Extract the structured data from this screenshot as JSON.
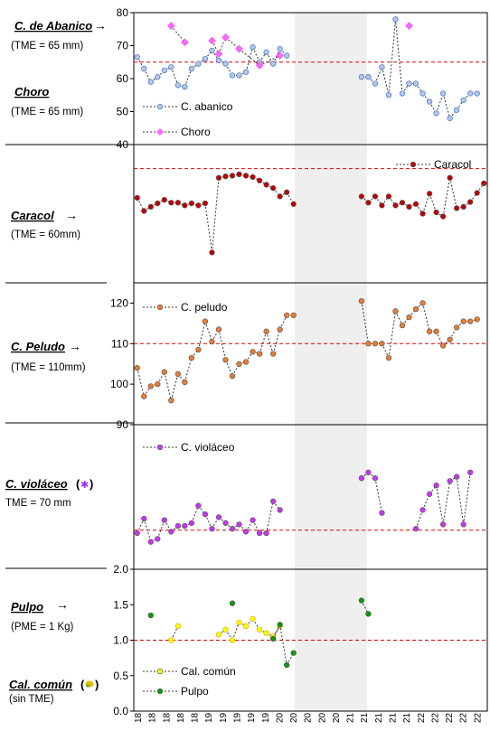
{
  "chart_data": [
    {
      "type": "scatter",
      "panel_labels": {
        "title": "C. de Abanico",
        "arrow": "→",
        "subtitle": "(TME = 65 mm)"
      },
      "ylim": [
        40,
        80
      ],
      "yticks": [
        "40",
        "50",
        "60",
        "70",
        "80"
      ],
      "reference_line": 65,
      "legend": "bottom-left",
      "series": [
        {
          "name": "C. abanico",
          "color": "#4472c4",
          "marker": "circle",
          "values": [
            [
              1,
              66.5
            ],
            [
              2,
              63
            ],
            [
              3,
              59
            ],
            [
              4,
              60.5
            ],
            [
              5,
              62.5
            ],
            [
              6,
              63.5
            ],
            [
              7,
              58
            ],
            [
              8,
              57.5
            ],
            [
              9,
              63
            ],
            [
              10,
              64.5
            ],
            [
              11,
              66
            ],
            [
              12,
              68.5
            ],
            [
              13,
              65.5
            ],
            [
              14,
              64.5
            ],
            [
              15,
              61
            ],
            [
              16,
              61
            ],
            [
              17,
              62
            ],
            [
              18,
              69.5
            ],
            [
              19,
              65
            ],
            [
              20,
              68
            ],
            [
              21,
              64.5
            ],
            [
              22,
              69
            ],
            [
              23,
              67
            ],
            [
              34,
              60.5
            ],
            [
              35,
              60.5
            ],
            [
              36,
              58.5
            ],
            [
              37,
              63.5
            ],
            [
              38,
              55
            ],
            [
              39,
              78
            ],
            [
              40,
              55.5
            ],
            [
              41,
              58.5
            ],
            [
              42,
              58.5
            ],
            [
              43,
              55.5
            ],
            [
              44,
              53
            ],
            [
              45,
              49.5
            ],
            [
              46,
              55.5
            ],
            [
              47,
              48
            ],
            [
              48,
              50.5
            ],
            [
              49,
              53.5
            ],
            [
              50,
              55.5
            ],
            [
              51,
              55.5
            ]
          ]
        },
        {
          "name": "Choro",
          "color": "#ff66ff",
          "marker": "diamond",
          "values": [
            [
              6,
              76
            ],
            [
              8,
              71
            ],
            [
              12,
              71.5
            ],
            [
              14,
              72.5
            ],
            [
              16,
              69
            ],
            [
              19,
              64
            ],
            [
              22,
              67
            ],
            [
              13,
              67.5
            ],
            [
              41,
              76
            ]
          ]
        }
      ]
    },
    {
      "type": "scatter",
      "panel_labels": {
        "title": "Caracol",
        "arrow": "→",
        "subtitle": "(TME = 60mm)"
      },
      "ylim": [
        0,
        1
      ],
      "reference_line": 0.826,
      "legend": "top-right",
      "series": [
        {
          "name": "Caracol",
          "color": "#c00000",
          "marker": "circle",
          "values": [
            [
              1,
              0.615
            ],
            [
              2,
              0.52
            ],
            [
              3,
              0.55
            ],
            [
              4,
              0.575
            ],
            [
              5,
              0.6
            ],
            [
              6,
              0.58
            ],
            [
              7,
              0.58
            ],
            [
              8,
              0.56
            ],
            [
              9,
              0.575
            ],
            [
              10,
              0.56
            ],
            [
              11,
              0.575
            ],
            [
              12,
              0.22
            ],
            [
              13,
              0.76
            ],
            [
              14,
              0.77
            ],
            [
              15,
              0.775
            ],
            [
              16,
              0.785
            ],
            [
              17,
              0.775
            ],
            [
              18,
              0.765
            ],
            [
              19,
              0.74
            ],
            [
              20,
              0.71
            ],
            [
              21,
              0.685
            ],
            [
              22,
              0.625
            ],
            [
              23,
              0.655
            ],
            [
              24,
              0.57
            ],
            [
              34,
              0.625
            ],
            [
              35,
              0.58
            ],
            [
              36,
              0.625
            ],
            [
              37,
              0.56
            ],
            [
              38,
              0.625
            ],
            [
              39,
              0.56
            ],
            [
              40,
              0.58
            ],
            [
              41,
              0.55
            ],
            [
              42,
              0.57
            ],
            [
              43,
              0.5
            ],
            [
              44,
              0.645
            ],
            [
              45,
              0.51
            ],
            [
              46,
              0.48
            ],
            [
              47,
              0.76
            ],
            [
              48,
              0.54
            ],
            [
              49,
              0.55
            ],
            [
              50,
              0.585
            ],
            [
              51,
              0.65
            ],
            [
              52,
              0.72
            ]
          ]
        }
      ]
    },
    {
      "type": "scatter",
      "panel_labels": {
        "title": "C. Peludo",
        "arrow": "→",
        "subtitle": "(TME = 110mm)"
      },
      "ylim": [
        90,
        125
      ],
      "yticks": [
        "90",
        "100",
        "110",
        "120"
      ],
      "reference_line": 110,
      "legend": "top-left",
      "series": [
        {
          "name": "C. peludo",
          "color": "#ed7d31",
          "marker": "circle",
          "values": [
            [
              1,
              104
            ],
            [
              2,
              97
            ],
            [
              3,
              99.5
            ],
            [
              4,
              100
            ],
            [
              5,
              103
            ],
            [
              6,
              96
            ],
            [
              7,
              102.5
            ],
            [
              8,
              100.5
            ],
            [
              9,
              106.5
            ],
            [
              10,
              108.5
            ],
            [
              11,
              115.5
            ],
            [
              12,
              110.5
            ],
            [
              13,
              113.5
            ],
            [
              14,
              106
            ],
            [
              15,
              102
            ],
            [
              16,
              105
            ],
            [
              17,
              105.5
            ],
            [
              18,
              108
            ],
            [
              19,
              107.5
            ],
            [
              20,
              113
            ],
            [
              21,
              107.5
            ],
            [
              22,
              113.5
            ],
            [
              23,
              117
            ],
            [
              24,
              117
            ],
            [
              34,
              120.5
            ],
            [
              35,
              110
            ],
            [
              36,
              110
            ],
            [
              37,
              110
            ],
            [
              38,
              106.5
            ],
            [
              39,
              118
            ],
            [
              40,
              114.5
            ],
            [
              41,
              116.5
            ],
            [
              42,
              118.5
            ],
            [
              43,
              120
            ],
            [
              44,
              113
            ],
            [
              45,
              113
            ],
            [
              46,
              109.5
            ],
            [
              47,
              111
            ],
            [
              48,
              114
            ],
            [
              49,
              115.5
            ],
            [
              50,
              115.5
            ],
            [
              51,
              116
            ]
          ]
        }
      ]
    },
    {
      "type": "scatter",
      "panel_labels": {
        "title": "C. violáceo",
        "paren_open": "(",
        "glyph": "✱",
        "paren_close": ")",
        "subtitle": "TME = 70 mm"
      },
      "ylim": [
        0,
        1
      ],
      "reference_line": 0.27,
      "legend": "top-left",
      "series": [
        {
          "name": "C. violáceo",
          "color": "#cc33ff",
          "marker": "circle",
          "values": [
            [
              1,
              0.25
            ],
            [
              2,
              0.35
            ],
            [
              3,
              0.19
            ],
            [
              4,
              0.21
            ],
            [
              5,
              0.34
            ],
            [
              6,
              0.26
            ],
            [
              7,
              0.3
            ],
            [
              8,
              0.3
            ],
            [
              9,
              0.32
            ],
            [
              10,
              0.44
            ],
            [
              11,
              0.38
            ],
            [
              12,
              0.28
            ],
            [
              13,
              0.36
            ],
            [
              14,
              0.32
            ],
            [
              15,
              0.28
            ],
            [
              16,
              0.31
            ],
            [
              17,
              0.26
            ],
            [
              18,
              0.34
            ],
            [
              19,
              0.25
            ],
            [
              20,
              0.25
            ],
            [
              21,
              0.47
            ],
            [
              22,
              0.41
            ],
            [
              34,
              0.63
            ],
            [
              35,
              0.67
            ],
            [
              36,
              0.63
            ],
            [
              37,
              0.39
            ],
            [
              42,
              0.28
            ],
            [
              43,
              0.41
            ],
            [
              44,
              0.52
            ],
            [
              45,
              0.58
            ],
            [
              46,
              0.31
            ],
            [
              47,
              0.61
            ],
            [
              48,
              0.64
            ],
            [
              49,
              0.31
            ],
            [
              50,
              0.67
            ]
          ]
        }
      ]
    },
    {
      "type": "scatter",
      "panel_labels": {
        "title": "Pulpo",
        "arrow": "→",
        "subtitle": "(PME = 1 Kg)",
        "title2": "Cal. común",
        "title2_paren_open": "(",
        "title2_paren_close": ")",
        "subtitle2": "(sin TME)"
      },
      "ylim": [
        0,
        2
      ],
      "yticks": [
        "0.0",
        "0.5",
        "1.0",
        "1.5",
        "2.0"
      ],
      "reference_line": 1.0,
      "legend": "bottom-left",
      "series": [
        {
          "name": "Cal. común",
          "color": "#ffff00",
          "marker": "circle",
          "values": [
            [
              6,
              1.0
            ],
            [
              7,
              1.2
            ],
            [
              13,
              1.08
            ],
            [
              14,
              1.15
            ],
            [
              15,
              1.0
            ],
            [
              16,
              1.25
            ],
            [
              17,
              1.2
            ],
            [
              18,
              1.3
            ],
            [
              19,
              1.15
            ],
            [
              20,
              1.1
            ],
            [
              21,
              1.05
            ],
            [
              22,
              1.2
            ]
          ]
        },
        {
          "name": "Pulpo",
          "color": "#00a000",
          "marker": "circle",
          "values": [
            [
              3,
              1.35
            ],
            [
              15,
              1.52
            ],
            [
              21,
              1.02
            ],
            [
              22,
              1.22
            ],
            [
              23,
              0.65
            ],
            [
              24,
              0.82
            ],
            [
              34,
              1.56
            ],
            [
              35,
              1.37
            ]
          ]
        }
      ]
    }
  ],
  "x_axis": {
    "tick_labels": [
      "18",
      "18",
      "18",
      "18",
      "18",
      "19",
      "19",
      "19",
      "19",
      "19",
      "20",
      "20",
      "20",
      "20",
      "20",
      "21",
      "21",
      "21",
      "21",
      "21",
      "22",
      "22",
      "22",
      "22",
      "22"
    ]
  }
}
